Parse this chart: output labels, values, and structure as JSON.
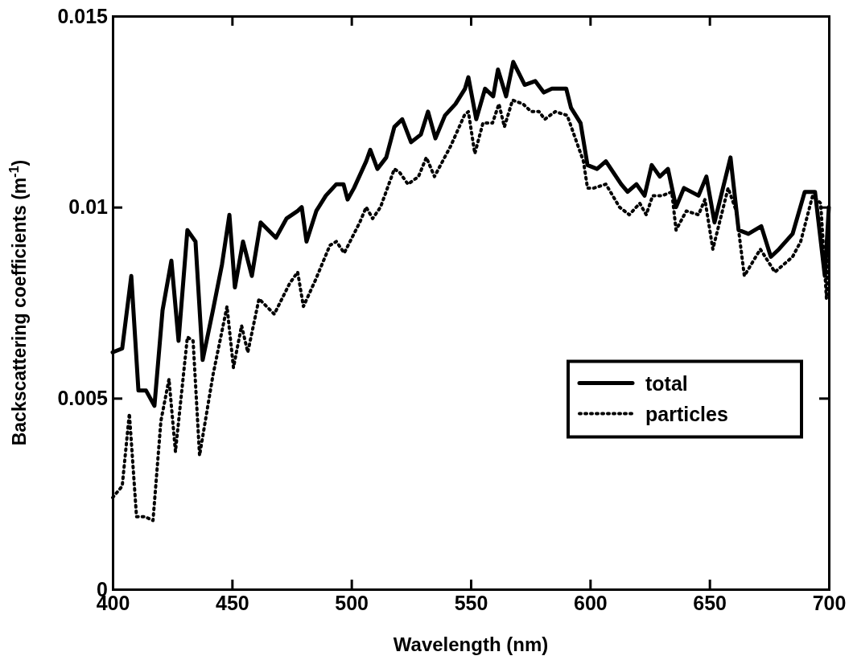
{
  "chart_data": {
    "type": "line",
    "xlabel": "Wavelength (nm)",
    "ylabel": "Backscattering coefficients (m$^{-1}$)",
    "xlim": [
      400,
      700
    ],
    "ylim": [
      0,
      0.015
    ],
    "xticks": [
      400,
      450,
      500,
      550,
      600,
      650,
      700
    ],
    "yticks": [
      0,
      0.005,
      0.01,
      0.015
    ],
    "grid": false,
    "legend": "right",
    "marker": "none",
    "series": [
      {
        "name": "total",
        "color": "#000000",
        "line_style": "solid",
        "x": [
          400,
          404,
          407.8,
          410.8,
          414,
          417.5,
          420.9,
          424.6,
          427.6,
          431.3,
          434.7,
          437.7,
          442,
          445.8,
          448.9,
          451.2,
          454.6,
          458.3,
          462,
          468.4,
          472.8,
          477.5,
          479.2,
          481.2,
          485.3,
          489.3,
          493.7,
          496.7,
          498.4,
          501.1,
          506.2,
          507.9,
          510.9,
          514.6,
          518,
          521.3,
          525,
          529.1,
          532.1,
          535.2,
          539.2,
          543.6,
          547.6,
          549,
          552.3,
          556,
          559.4,
          561.4,
          564.8,
          567.8,
          572.6,
          577,
          580.6,
          584,
          590,
          592,
          596,
          598.9,
          602.9,
          606.6,
          613,
          615.7,
          619.4,
          622.8,
          625.8,
          629.2,
          632.6,
          636,
          639.3,
          645.4,
          648.7,
          652.1,
          658.8,
          662.2,
          666.3,
          671.7,
          675.7,
          679.1,
          684.8,
          689.9,
          694.2,
          698.3,
          700
        ],
        "values": [
          0.0062,
          0.0063,
          0.0082,
          0.0052,
          0.0052,
          0.0048,
          0.0073,
          0.0086,
          0.0065,
          0.0094,
          0.0091,
          0.006,
          0.0073,
          0.0085,
          0.0098,
          0.0079,
          0.0091,
          0.0082,
          0.0096,
          0.0092,
          0.0097,
          0.0099,
          0.01,
          0.0091,
          0.0099,
          0.0103,
          0.0106,
          0.0106,
          0.0102,
          0.0105,
          0.0112,
          0.0115,
          0.011,
          0.0113,
          0.0121,
          0.0123,
          0.0117,
          0.0119,
          0.0125,
          0.0118,
          0.0124,
          0.0127,
          0.0131,
          0.0134,
          0.0123,
          0.0131,
          0.0129,
          0.0136,
          0.0129,
          0.0138,
          0.0132,
          0.0133,
          0.013,
          0.0131,
          0.0131,
          0.0126,
          0.0122,
          0.0111,
          0.011,
          0.0112,
          0.0106,
          0.0104,
          0.0106,
          0.0103,
          0.0111,
          0.0108,
          0.011,
          0.01,
          0.0105,
          0.0103,
          0.0108,
          0.0096,
          0.0113,
          0.0094,
          0.0093,
          0.0095,
          0.0087,
          0.0089,
          0.0093,
          0.0104,
          0.0104,
          0.0082,
          0.01
        ]
      },
      {
        "name": "particles",
        "color": "#000000",
        "line_style": "dotted",
        "x": [
          400,
          404,
          407,
          410,
          413.5,
          416.9,
          420.2,
          423.6,
          426.3,
          431.3,
          433.7,
          436.4,
          442,
          447.9,
          450.6,
          454,
          456.6,
          461.3,
          467.7,
          474.1,
          477.5,
          479.9,
          485,
          491,
          493.7,
          497,
          503.5,
          506.2,
          508.9,
          512.2,
          518,
          520.3,
          523.7,
          528.1,
          531.4,
          534.8,
          541.6,
          547.3,
          549,
          551.7,
          555.1,
          559.1,
          561.8,
          564.1,
          567.5,
          571.9,
          575.3,
          578.6,
          581,
          585.4,
          590.4,
          593.8,
          597.2,
          598.9,
          601.6,
          606.6,
          612.3,
          616.4,
          620.8,
          623.5,
          626.2,
          630.2,
          634.2,
          636,
          640.3,
          645.4,
          648.1,
          651.4,
          657.8,
          661.2,
          664.6,
          671.3,
          677.4,
          684.8,
          688.2,
          693.2,
          696.6,
          699,
          700
        ],
        "values": [
          0.0024,
          0.0027,
          0.0046,
          0.0019,
          0.0019,
          0.0018,
          0.0044,
          0.0055,
          0.0036,
          0.0066,
          0.0065,
          0.0035,
          0.0056,
          0.0074,
          0.0058,
          0.0069,
          0.0062,
          0.0076,
          0.0072,
          0.008,
          0.0083,
          0.0074,
          0.0081,
          0.009,
          0.0091,
          0.0088,
          0.0096,
          0.01,
          0.0097,
          0.01,
          0.011,
          0.0109,
          0.0106,
          0.0108,
          0.0113,
          0.0108,
          0.0116,
          0.0124,
          0.0125,
          0.0114,
          0.0122,
          0.0122,
          0.0127,
          0.0121,
          0.0128,
          0.0127,
          0.0125,
          0.0125,
          0.0123,
          0.0125,
          0.0124,
          0.0118,
          0.0112,
          0.0105,
          0.0105,
          0.0106,
          0.01,
          0.0098,
          0.0101,
          0.0098,
          0.0103,
          0.0103,
          0.0104,
          0.0094,
          0.0099,
          0.0098,
          0.0102,
          0.0089,
          0.0105,
          0.0099,
          0.0082,
          0.0089,
          0.0083,
          0.0087,
          0.0091,
          0.0103,
          0.0101,
          0.0076,
          0.0098
        ]
      }
    ]
  }
}
